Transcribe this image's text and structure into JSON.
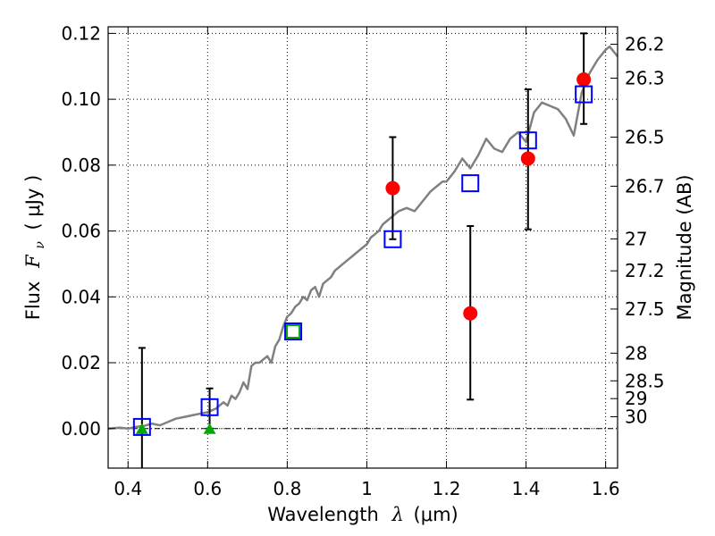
{
  "chart_data": {
    "type": "scatter",
    "xlabel": "Wavelength",
    "xlabel_symbol": "λ",
    "xlabel_unit": "(μm)",
    "ylabel": "Flux",
    "ylabel_symbol": "F",
    "ylabel_subscript": "ν",
    "ylabel_unit": "( μJy )",
    "y2label": "Magnitude (AB)",
    "xlim": [
      0.35,
      1.63
    ],
    "ylim": [
      -0.012,
      0.122
    ],
    "grid": true,
    "x_ticks": [
      0.4,
      0.6,
      0.8,
      1.0,
      1.2,
      1.4,
      1.6
    ],
    "x_tick_labels": [
      "0.4",
      "0.6",
      "0.8",
      "1",
      "1.2",
      "1.4",
      "1.6"
    ],
    "y_ticks": [
      0.0,
      0.02,
      0.04,
      0.06,
      0.08,
      0.1,
      0.12
    ],
    "y_tick_labels": [
      "0.00",
      "0.02",
      "0.04",
      "0.06",
      "0.08",
      "0.10",
      "0.12"
    ],
    "y2_ticks": [
      {
        "label": "26.2",
        "flux": 0.1167
      },
      {
        "label": "26.3",
        "flux": 0.1064
      },
      {
        "label": "26.5",
        "flux": 0.0885
      },
      {
        "label": "26.7",
        "flux": 0.0736
      },
      {
        "label": "27",
        "flux": 0.0576
      },
      {
        "label": "27.2",
        "flux": 0.0479
      },
      {
        "label": "27.5",
        "flux": 0.0363
      },
      {
        "label": "28",
        "flux": 0.0229
      },
      {
        "label": "28.5",
        "flux": 0.0145
      },
      {
        "label": "29",
        "flux": 0.0091
      },
      {
        "label": "30",
        "flux": 0.0036
      }
    ],
    "model_sed": {
      "name": "model spectrum",
      "color": "#808080",
      "x": [
        0.35,
        0.38,
        0.4,
        0.42,
        0.44,
        0.46,
        0.48,
        0.5,
        0.52,
        0.54,
        0.56,
        0.58,
        0.6,
        0.62,
        0.64,
        0.65,
        0.66,
        0.67,
        0.68,
        0.69,
        0.7,
        0.71,
        0.72,
        0.73,
        0.74,
        0.75,
        0.76,
        0.77,
        0.78,
        0.79,
        0.8,
        0.81,
        0.82,
        0.83,
        0.84,
        0.85,
        0.86,
        0.87,
        0.88,
        0.89,
        0.9,
        0.91,
        0.92,
        0.93,
        0.94,
        0.95,
        0.96,
        0.97,
        0.98,
        0.99,
        1.0,
        1.01,
        1.02,
        1.03,
        1.04,
        1.05,
        1.06,
        1.07,
        1.08,
        1.1,
        1.12,
        1.14,
        1.16,
        1.18,
        1.19,
        1.2,
        1.22,
        1.24,
        1.26,
        1.28,
        1.3,
        1.32,
        1.34,
        1.36,
        1.38,
        1.4,
        1.42,
        1.44,
        1.46,
        1.48,
        1.5,
        1.52,
        1.54,
        1.56,
        1.58,
        1.6,
        1.61,
        1.63
      ],
      "y": [
        0.0,
        0.0003,
        0.0,
        0.0005,
        0.0008,
        0.0015,
        0.001,
        0.002,
        0.003,
        0.0035,
        0.004,
        0.0045,
        0.005,
        0.006,
        0.008,
        0.007,
        0.01,
        0.009,
        0.011,
        0.014,
        0.012,
        0.019,
        0.02,
        0.02,
        0.021,
        0.022,
        0.02,
        0.025,
        0.027,
        0.031,
        0.034,
        0.035,
        0.037,
        0.038,
        0.04,
        0.039,
        0.042,
        0.043,
        0.04,
        0.044,
        0.045,
        0.046,
        0.048,
        0.049,
        0.05,
        0.051,
        0.052,
        0.053,
        0.054,
        0.055,
        0.056,
        0.058,
        0.059,
        0.06,
        0.062,
        0.063,
        0.064,
        0.065,
        0.066,
        0.067,
        0.066,
        0.069,
        0.072,
        0.074,
        0.075,
        0.075,
        0.078,
        0.082,
        0.079,
        0.083,
        0.088,
        0.085,
        0.084,
        0.088,
        0.09,
        0.087,
        0.096,
        0.099,
        0.098,
        0.097,
        0.094,
        0.089,
        0.102,
        0.108,
        0.112,
        0.115,
        0.116,
        0.113
      ]
    },
    "observed": {
      "name": "observed flux",
      "color": "#ff0000",
      "points": [
        {
          "x": 1.065,
          "y": 0.073,
          "err_lo": 0.0575,
          "err_hi": 0.0885
        },
        {
          "x": 1.26,
          "y": 0.035,
          "err_lo": 0.0088,
          "err_hi": 0.0615
        },
        {
          "x": 1.405,
          "y": 0.082,
          "err_lo": 0.0605,
          "err_hi": 0.103
        },
        {
          "x": 1.545,
          "y": 0.106,
          "err_lo": 0.0925,
          "err_hi": 0.12
        }
      ]
    },
    "upper_limits": {
      "name": "non-detections",
      "color": "#00aa00",
      "points": [
        {
          "x": 0.435,
          "y": 0.0,
          "err_lo": -0.012,
          "err_hi": 0.0245
        },
        {
          "x": 0.605,
          "y": 0.0,
          "err_lo": 0.0,
          "err_hi": 0.0122
        }
      ]
    },
    "model_bands": {
      "name": "model band fluxes",
      "color": "#0000ff",
      "points": [
        {
          "x": 0.435,
          "y": 0.0005
        },
        {
          "x": 0.605,
          "y": 0.0065
        },
        {
          "x": 0.815,
          "y": 0.0295
        },
        {
          "x": 1.065,
          "y": 0.0575
        },
        {
          "x": 1.26,
          "y": 0.0745
        },
        {
          "x": 1.405,
          "y": 0.0875
        },
        {
          "x": 1.545,
          "y": 0.1015
        }
      ]
    },
    "extra_marker": {
      "name": "green square",
      "color": "#00aa00",
      "x": 0.815,
      "y": 0.0295
    }
  }
}
